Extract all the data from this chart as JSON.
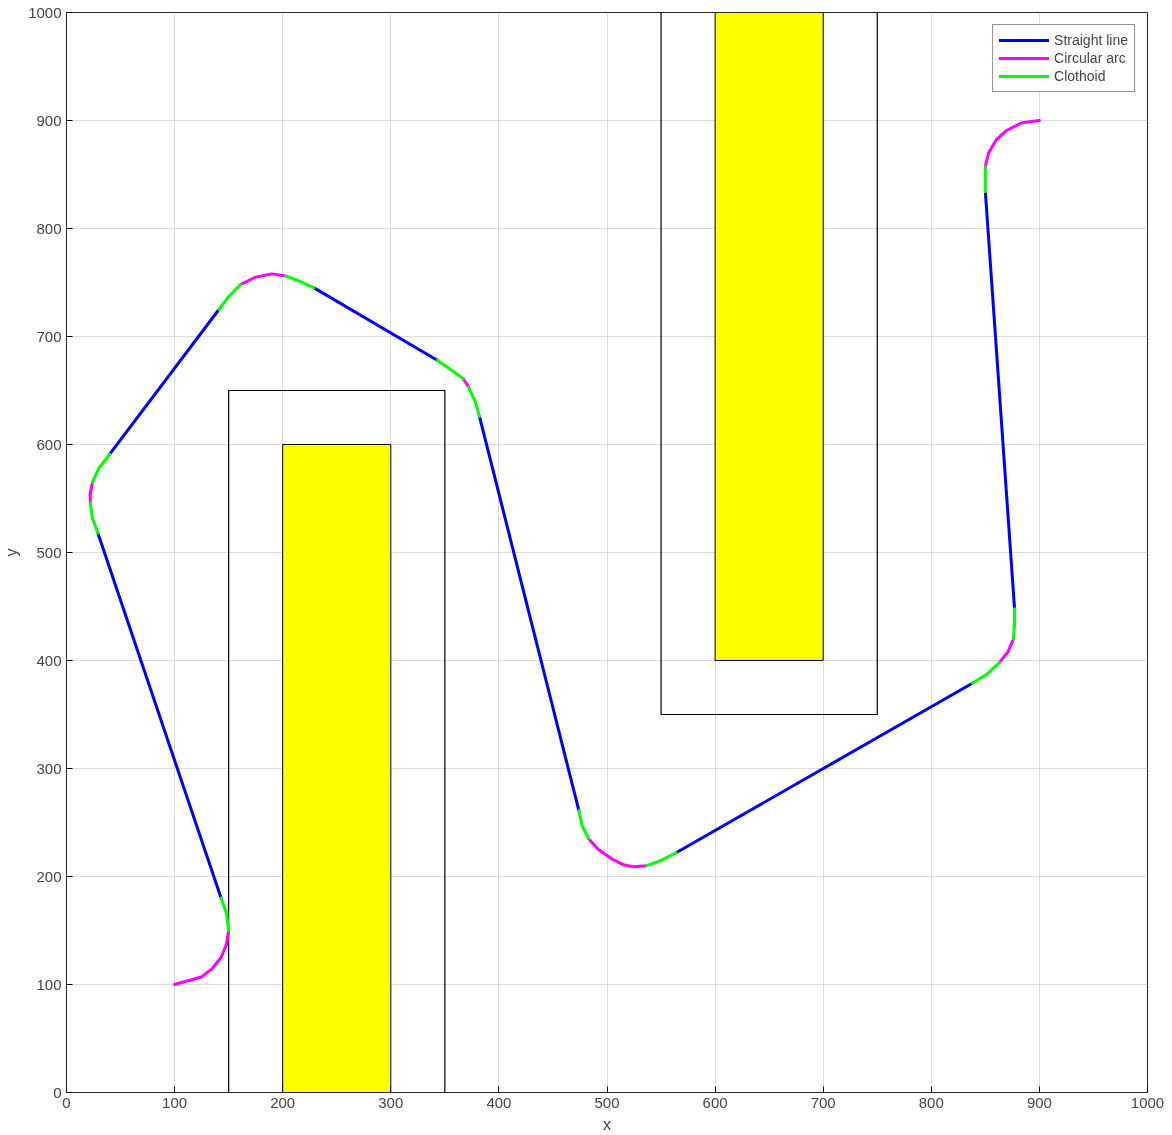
{
  "chart_data": {
    "type": "line",
    "xlabel": "x",
    "ylabel": "y",
    "xlim": [
      0,
      1000
    ],
    "ylim": [
      0,
      1000
    ],
    "xticks": [
      0,
      100,
      200,
      300,
      400,
      500,
      600,
      700,
      800,
      900,
      1000
    ],
    "yticks": [
      0,
      100,
      200,
      300,
      400,
      500,
      600,
      700,
      800,
      900,
      1000
    ],
    "grid": true,
    "legend": "top right",
    "line_style": "solid",
    "marker": "none",
    "series": [
      {
        "type": "area",
        "color": "#ffff00",
        "x": [
          200,
          200,
          300,
          300
        ],
        "values": [
          0,
          600,
          600,
          0
        ]
      },
      {
        "type": "area",
        "color": "#ffff00",
        "x": [
          600,
          600,
          700,
          700
        ],
        "values": [
          1000,
          400,
          400,
          1000
        ]
      },
      {
        "type": "line",
        "color": "#000000",
        "x": [
          150,
          150,
          350,
          350
        ],
        "values": [
          0,
          650,
          650,
          0
        ]
      },
      {
        "type": "line",
        "color": "#000000",
        "x": [
          550,
          550,
          750,
          750
        ],
        "values": [
          1000,
          350,
          350,
          1000
        ]
      },
      {
        "name": "Straight line",
        "color": "#0000ff",
        "x": [
          143,
          29,
          null,
          40,
          141,
          null,
          229,
          343,
          null,
          382,
          474,
          null,
          564,
          838,
          null,
          877,
          850
        ],
        "values": [
          180,
          518,
          null,
          591,
          725,
          null,
          745,
          678,
          null,
          626,
          261,
          null,
          222,
          379,
          null,
          448,
          834
        ]
      },
      {
        "name": "Circular arc",
        "color": "#ff00ff",
        "x": [
          100,
          125,
          135,
          143,
          148,
          150,
          null,
          22,
          22,
          24,
          null,
          161,
          175,
          190,
          203,
          null,
          367,
          372,
          null,
          483,
          492,
          505,
          515,
          524,
          537,
          null,
          863,
          871,
          876,
          null,
          850,
          853,
          860,
          870,
          884,
          900
        ],
        "values": [
          100,
          107,
          115,
          125,
          137,
          150,
          null,
          546,
          555,
          565,
          null,
          748,
          755,
          758,
          756,
          null,
          661,
          653,
          null,
          235,
          225,
          216,
          211,
          209,
          210,
          null,
          398,
          408,
          420,
          null,
          857,
          870,
          882,
          891,
          898,
          900
        ]
      },
      {
        "name": "Clothoid",
        "color": "#00ff00",
        "x": [
          150,
          148,
          143,
          null,
          29,
          24,
          22,
          null,
          24,
          30,
          40,
          null,
          141,
          150,
          161,
          null,
          203,
          216,
          229,
          null,
          343,
          356,
          367,
          null,
          372,
          378,
          382,
          null,
          474,
          477,
          483,
          null,
          537,
          550,
          564,
          null,
          838,
          851,
          863,
          null,
          876,
          877,
          877,
          null,
          850,
          850
        ],
        "values": [
          150,
          166,
          180,
          null,
          518,
          532,
          546,
          null,
          565,
          578,
          591,
          null,
          725,
          737,
          748,
          null,
          756,
          751,
          745,
          null,
          678,
          669,
          661,
          null,
          653,
          640,
          626,
          null,
          261,
          247,
          235,
          null,
          210,
          215,
          222,
          null,
          379,
          387,
          398,
          null,
          420,
          434,
          448,
          null,
          834,
          857
        ]
      }
    ]
  }
}
